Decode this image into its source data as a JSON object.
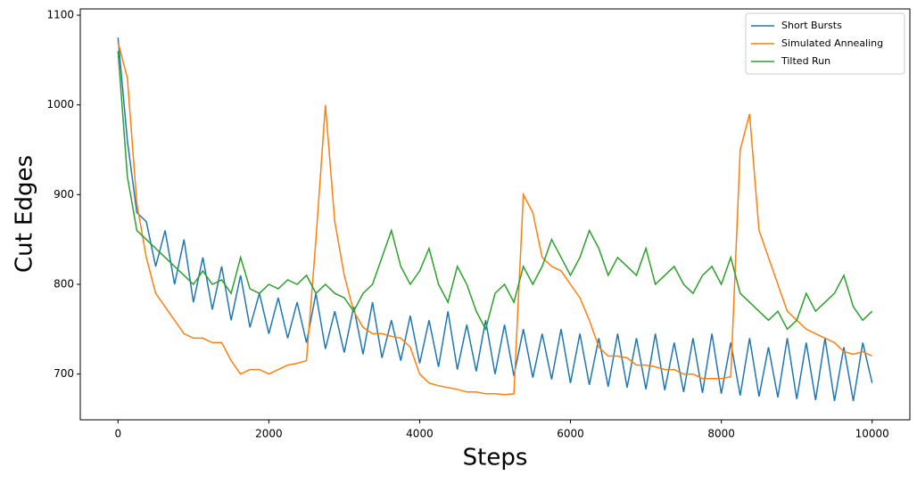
{
  "chart_data": {
    "type": "line",
    "xlabel": "Steps",
    "ylabel": "Cut Edges",
    "x": [
      0,
      125,
      250,
      375,
      500,
      625,
      750,
      875,
      1000,
      1125,
      1250,
      1375,
      1500,
      1625,
      1750,
      1875,
      2000,
      2125,
      2250,
      2375,
      2500,
      2625,
      2750,
      2875,
      3000,
      3125,
      3250,
      3375,
      3500,
      3625,
      3750,
      3875,
      4000,
      4125,
      4250,
      4375,
      4500,
      4625,
      4750,
      4875,
      5000,
      5125,
      5250,
      5375,
      5500,
      5625,
      5750,
      5875,
      6000,
      6125,
      6250,
      6375,
      6500,
      6625,
      6750,
      6875,
      7000,
      7125,
      7250,
      7375,
      7500,
      7625,
      7750,
      7875,
      8000,
      8125,
      8250,
      8375,
      8500,
      8625,
      8750,
      8875,
      9000,
      9125,
      9250,
      9375,
      9500,
      9625,
      9750,
      9875,
      10000
    ],
    "series": [
      {
        "name": "Short Bursts",
        "color": "#1f77b4",
        "values": [
          1075,
          960,
          880,
          870,
          820,
          860,
          800,
          850,
          780,
          830,
          772,
          820,
          760,
          810,
          752,
          790,
          745,
          785,
          740,
          780,
          735,
          790,
          728,
          770,
          724,
          775,
          722,
          780,
          718,
          760,
          715,
          765,
          712,
          760,
          708,
          770,
          705,
          755,
          703,
          760,
          700,
          755,
          698,
          750,
          696,
          745,
          694,
          750,
          690,
          745,
          688,
          740,
          686,
          745,
          685,
          740,
          683,
          745,
          682,
          735,
          680,
          740,
          679,
          745,
          678,
          735,
          676,
          740,
          675,
          730,
          674,
          740,
          672,
          735,
          671,
          740,
          670,
          730,
          670,
          735,
          690
        ]
      },
      {
        "name": "Simulated Annealing",
        "color": "#ff7f0e",
        "values": [
          1070,
          1030,
          890,
          830,
          790,
          775,
          760,
          745,
          740,
          740,
          735,
          735,
          715,
          700,
          705,
          705,
          700,
          705,
          710,
          712,
          715,
          850,
          1000,
          870,
          810,
          770,
          752,
          745,
          745,
          742,
          740,
          730,
          700,
          690,
          687,
          685,
          683,
          680,
          680,
          678,
          678,
          677,
          678,
          900,
          880,
          830,
          820,
          815,
          800,
          785,
          760,
          730,
          720,
          720,
          718,
          710,
          710,
          708,
          705,
          705,
          700,
          700,
          695,
          695,
          695,
          697,
          950,
          990,
          860,
          830,
          800,
          770,
          760,
          750,
          745,
          740,
          735,
          725,
          722,
          725,
          720
        ]
      },
      {
        "name": "Tilted Run",
        "color": "#2ca02c",
        "values": [
          1060,
          920,
          860,
          850,
          840,
          830,
          820,
          810,
          800,
          815,
          800,
          805,
          790,
          830,
          795,
          790,
          800,
          795,
          805,
          800,
          810,
          790,
          800,
          790,
          785,
          770,
          790,
          800,
          830,
          860,
          820,
          800,
          815,
          840,
          800,
          780,
          820,
          800,
          770,
          750,
          790,
          800,
          780,
          820,
          800,
          820,
          850,
          830,
          810,
          830,
          860,
          840,
          810,
          830,
          820,
          810,
          840,
          800,
          810,
          820,
          800,
          790,
          810,
          820,
          800,
          830,
          790,
          780,
          770,
          760,
          770,
          750,
          760,
          790,
          770,
          780,
          790,
          810,
          775,
          760,
          770
        ]
      }
    ],
    "xlim": [
      -500,
      10500
    ],
    "ylim": [
      649,
      1107
    ],
    "xticks": [
      0,
      2000,
      4000,
      6000,
      8000,
      10000
    ],
    "yticks": [
      700,
      800,
      900,
      1000,
      1100
    ],
    "legend": "upper right"
  }
}
